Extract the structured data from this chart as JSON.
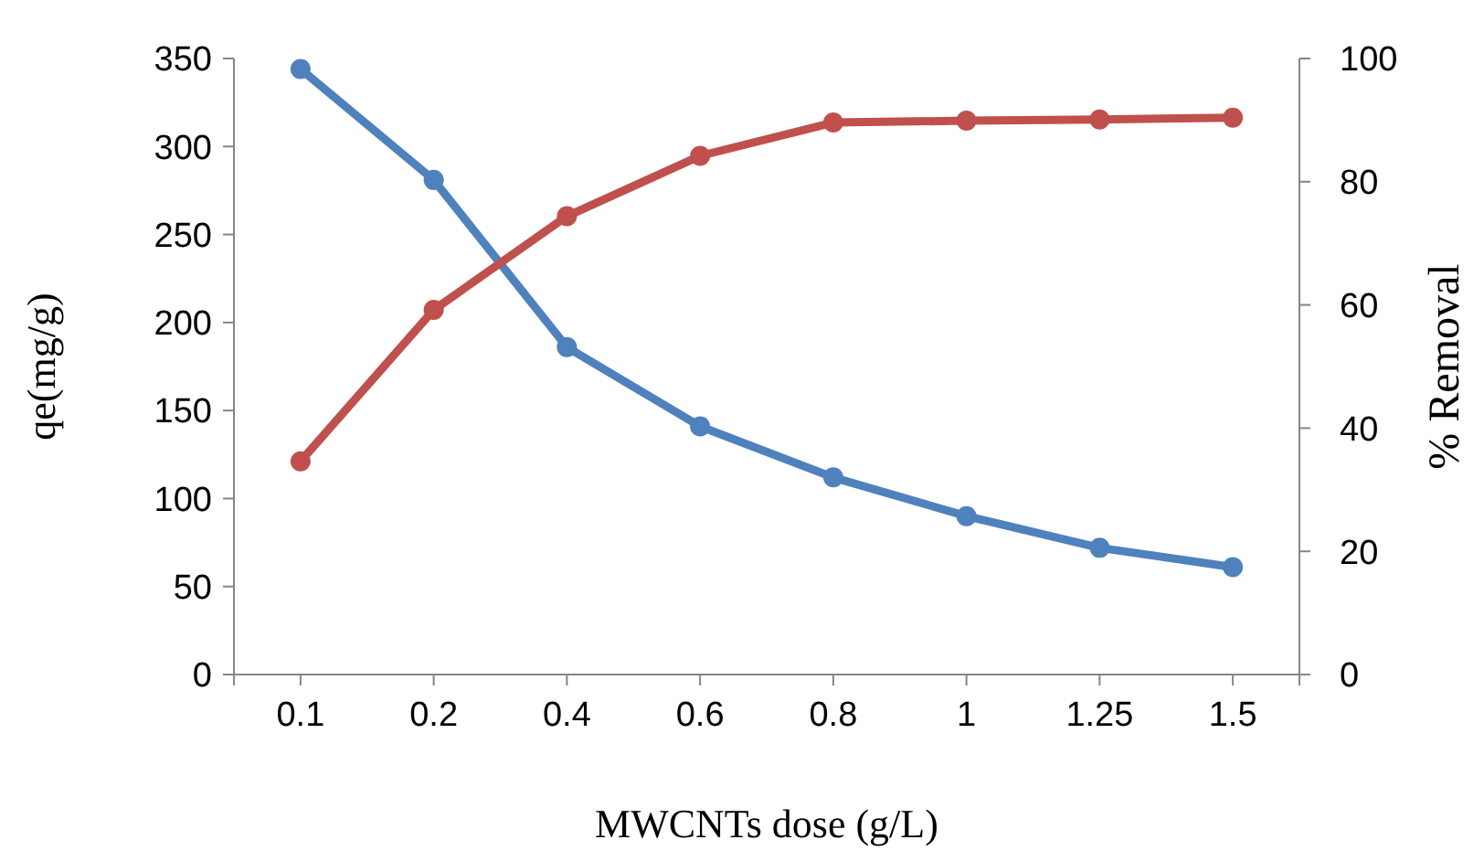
{
  "chart_data": {
    "type": "line",
    "xlabel": "MWCNTs dose (g/L)",
    "ylabel": "qe(mg/g)",
    "y2label": "% Removal",
    "categories": [
      "0.1",
      "0.2",
      "0.4",
      "0.6",
      "0.8",
      "1",
      "1.25",
      "1.5"
    ],
    "series": [
      {
        "color": "#4f81bd",
        "values": [
          344,
          281,
          186,
          141,
          112,
          90,
          72,
          61
        ]
      },
      {
        "color": "#c0504d",
        "axis": "y2",
        "values": [
          34.6,
          59.2,
          74.4,
          84.2,
          89.6,
          89.9,
          90.1,
          90.4
        ]
      }
    ],
    "ylim": [
      0,
      350
    ],
    "yticks": [
      0,
      50,
      100,
      150,
      200,
      250,
      300,
      350
    ],
    "y2lim": [
      0,
      100
    ],
    "y2ticks": [
      0,
      20,
      40,
      60,
      80,
      100
    ],
    "grid": false,
    "marker": "circle",
    "line_style": "solid"
  }
}
